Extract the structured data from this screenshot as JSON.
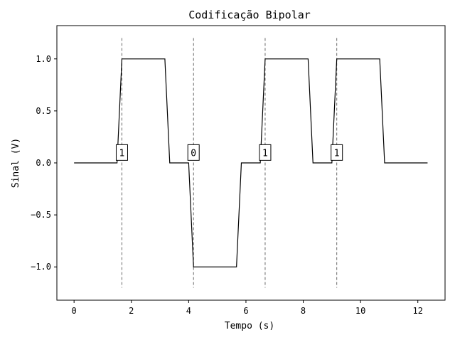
{
  "chart_data": {
    "type": "line",
    "title": "Codificação Bipolar",
    "xlabel": "Tempo (s)",
    "ylabel": "Sinal (V)",
    "xlim": [
      -0.6,
      12.95
    ],
    "ylim": [
      -1.32,
      1.32
    ],
    "xticks": [
      0,
      2,
      4,
      6,
      8,
      10,
      12
    ],
    "xtick_labels": [
      "0",
      "2",
      "4",
      "6",
      "8",
      "10",
      "12"
    ],
    "yticks": [
      -1.0,
      -0.5,
      0.0,
      0.5,
      1.0
    ],
    "ytick_labels": [
      "−1.0",
      "−0.5",
      "0.0",
      "0.5",
      "1.0"
    ],
    "grid": false,
    "series": [
      {
        "color": "#000000",
        "x": [
          0,
          1.5,
          1.67,
          3.17,
          3.34,
          4.0,
          4.17,
          5.67,
          5.84,
          6.5,
          6.67,
          8.17,
          8.34,
          9.0,
          9.17,
          10.67,
          10.84,
          12.34
        ],
        "y": [
          0,
          0,
          1,
          1,
          0,
          0,
          -1,
          -1,
          0,
          0,
          1,
          1,
          0,
          0,
          1,
          1,
          0,
          0
        ]
      }
    ],
    "bit_markers": {
      "x": [
        1.67,
        4.17,
        6.67,
        9.17
      ],
      "labels": [
        "1",
        "0",
        "1",
        "1"
      ],
      "label_y": 0.1,
      "line_ymin": -1.2,
      "line_ymax": 1.2,
      "line_color": "#666666"
    }
  }
}
